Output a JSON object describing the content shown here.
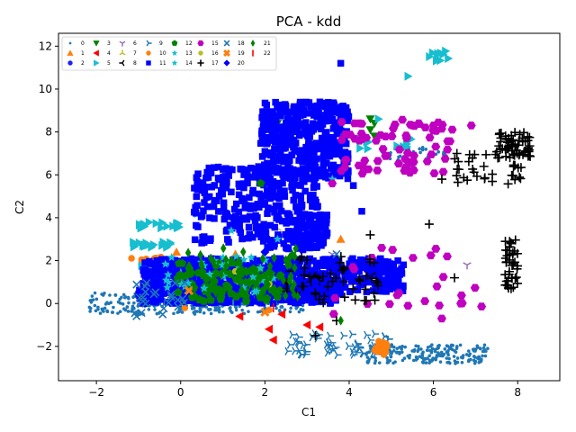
{
  "chart_data": {
    "type": "scatter",
    "title": "PCA - kdd",
    "xlabel": "C1",
    "ylabel": "C2",
    "xlim": [
      -2.9,
      9.0
    ],
    "ylim": [
      -3.6,
      12.6
    ],
    "xticks": [
      -2,
      0,
      2,
      4,
      6,
      8
    ],
    "yticks": [
      -2,
      0,
      2,
      4,
      6,
      8,
      10,
      12
    ],
    "legend_position": "top-left",
    "legend_columns": 8,
    "series": [
      {
        "name": "0",
        "marker": "o-small",
        "color": "#1f77b4",
        "clusters": [
          {
            "x": [
              -2.2,
              1.6
            ],
            "y": [
              -0.5,
              0.5
            ],
            "n": 220
          },
          {
            "x": [
              0.5,
              3.0
            ],
            "y": [
              -0.4,
              0.4
            ],
            "n": 80
          },
          {
            "x": [
              4.4,
              7.3
            ],
            "y": [
              -2.8,
              -1.9
            ],
            "n": 200
          },
          {
            "x": [
              4.8,
              6.4
            ],
            "y": [
              6.7,
              7.3
            ],
            "n": 40
          }
        ]
      },
      {
        "name": "1",
        "marker": "^",
        "color": "#ff7f0e",
        "points": [
          [
            3.8,
            3.0
          ],
          [
            -0.1,
            2.4
          ],
          [
            1.3,
            2.3
          ]
        ]
      },
      {
        "name": "2",
        "marker": "o",
        "color": "#1f1fff",
        "points": [
          [
            0.0,
            0.3
          ],
          [
            0.8,
            0.2
          ],
          [
            2.0,
            0.4
          ]
        ]
      },
      {
        "name": "3",
        "marker": "v",
        "color": "#008000",
        "points": [
          [
            2.3,
            8.4
          ],
          [
            4.5,
            8.6
          ],
          [
            4.6,
            8.4
          ],
          [
            4.5,
            8.1
          ],
          [
            4.6,
            7.8
          ]
        ]
      },
      {
        "name": "4",
        "marker": "<",
        "color": "#ff0000",
        "points": [
          [
            1.4,
            -0.6
          ],
          [
            2.1,
            -1.2
          ],
          [
            2.2,
            -1.7
          ],
          [
            3.0,
            -1.0
          ],
          [
            3.3,
            -1.1
          ],
          [
            2.4,
            -0.5
          ]
        ]
      },
      {
        "name": "5",
        "marker": ">",
        "color": "#17becf",
        "clusters": [
          {
            "x": [
              -1.3,
              -0.2
            ],
            "y": [
              2.6,
              2.9
            ],
            "n": 20
          },
          {
            "x": [
              -1.0,
              0.0
            ],
            "y": [
              3.5,
              3.8
            ],
            "n": 20
          },
          {
            "x": [
              -1.0,
              0.0
            ],
            "y": [
              1.3,
              1.8
            ],
            "n": 20
          },
          {
            "x": [
              5.8,
              6.4
            ],
            "y": [
              11.3,
              11.8
            ],
            "n": 10
          },
          {
            "x": [
              4.2,
              5.6
            ],
            "y": [
              7.2,
              7.8
            ],
            "n": 15
          }
        ],
        "points": [
          [
            5.4,
            10.6
          ],
          [
            0.4,
            4.2
          ],
          [
            4.7,
            8.6
          ]
        ]
      },
      {
        "name": "6",
        "marker": "tri_down",
        "color": "#9467bd",
        "points": [
          [
            3.6,
            2.3
          ],
          [
            6.8,
            1.8
          ],
          [
            2.8,
            0.4
          ]
        ]
      },
      {
        "name": "7",
        "marker": "tri_up",
        "color": "#bcbd22",
        "points": [
          [
            2.3,
            3.5
          ],
          [
            1.8,
            1.4
          ]
        ]
      },
      {
        "name": "8",
        "marker": "tri_left",
        "color": "#000000",
        "points": [
          [
            3.5,
            1.9
          ],
          [
            3.3,
            1.6
          ]
        ]
      },
      {
        "name": "9",
        "marker": "tri_right",
        "color": "#1f77b4",
        "clusters": [
          {
            "x": [
              2.5,
              5.0
            ],
            "y": [
              -2.4,
              -1.4
            ],
            "n": 60
          }
        ]
      },
      {
        "name": "10",
        "marker": "o",
        "color": "#ff7f0e",
        "clusters": [
          {
            "x": [
              -1.3,
              -0.3
            ],
            "y": [
              1.9,
              2.2
            ],
            "n": 12
          },
          {
            "x": [
              4.6,
              4.9
            ],
            "y": [
              -2.4,
              -1.7
            ],
            "n": 20
          }
        ],
        "points": [
          [
            0.1,
            -0.2
          ],
          [
            2.1,
            -0.3
          ]
        ]
      },
      {
        "name": "11",
        "marker": "s",
        "color": "#0000ff",
        "clusters": [
          {
            "x": [
              1.9,
              4.0
            ],
            "y": [
              5.8,
              9.4
            ],
            "n": 420
          },
          {
            "x": [
              0.3,
              3.3
            ],
            "y": [
              2.6,
              6.4
            ],
            "n": 300
          },
          {
            "x": [
              -0.9,
              5.3
            ],
            "y": [
              0.5,
              2.1
            ],
            "n": 650
          },
          {
            "x": [
              -1.0,
              3.8
            ],
            "y": [
              0.0,
              0.9
            ],
            "n": 300
          },
          {
            "x": [
              2.5,
              3.5
            ],
            "y": [
              2.5,
              4.2
            ],
            "n": 80
          }
        ],
        "points": [
          [
            3.8,
            11.2
          ],
          [
            2.2,
            7.6
          ],
          [
            1.5,
            5.4
          ],
          [
            1.2,
            5.2
          ],
          [
            0.8,
            4.8
          ],
          [
            3.0,
            3.2
          ],
          [
            4.3,
            4.3
          ],
          [
            3.9,
            6.4
          ],
          [
            4.1,
            5.5
          ],
          [
            5.0,
            1.5
          ]
        ]
      },
      {
        "name": "12",
        "marker": "p",
        "color": "#008000",
        "clusters": [
          {
            "x": [
              -0.1,
              2.4
            ],
            "y": [
              0.1,
              1.9
            ],
            "n": 90
          }
        ],
        "points": [
          [
            1.9,
            5.6
          ]
        ]
      },
      {
        "name": "13",
        "marker": "*",
        "color": "#17becf",
        "clusters": [
          {
            "x": [
              -0.4,
              2.4
            ],
            "y": [
              0.5,
              2.2
            ],
            "n": 30
          }
        ],
        "points": [
          [
            3.6,
            5.8
          ]
        ]
      },
      {
        "name": "14",
        "marker": "*",
        "color": "#17becf",
        "points": [
          [
            1.2,
            3.4
          ],
          [
            2.3,
            3.0
          ],
          [
            0.8,
            2.0
          ]
        ]
      },
      {
        "name": "15",
        "marker": "h",
        "color": "#c000c0",
        "clusters": [
          {
            "x": [
              3.8,
              6.5
            ],
            "y": [
              6.0,
              8.6
            ],
            "n": 70
          },
          {
            "x": [
              3.5,
              7.2
            ],
            "y": [
              -0.5,
              2.6
            ],
            "n": 25
          }
        ],
        "points": [
          [
            6.9,
            8.3
          ],
          [
            6.0,
            8.3
          ],
          [
            5.5,
            8.3
          ],
          [
            3.6,
            5.6
          ],
          [
            6.2,
            -0.7
          ]
        ]
      },
      {
        "name": "16",
        "marker": "o",
        "color": "#bcbd22",
        "points": [
          [
            1.3,
            1.5
          ],
          [
            2.1,
            0.9
          ]
        ]
      },
      {
        "name": "17",
        "marker": "+",
        "color": "#000000",
        "clusters": [
          {
            "x": [
              7.5,
              8.3
            ],
            "y": [
              6.8,
              8.0
            ],
            "n": 60
          },
          {
            "x": [
              6.5,
              7.8
            ],
            "y": [
              5.5,
              7.0
            ],
            "n": 25
          },
          {
            "x": [
              7.7,
              8.0
            ],
            "y": [
              0.6,
              3.0
            ],
            "n": 40
          },
          {
            "x": [
              2.5,
              4.8
            ],
            "y": [
              0.0,
              2.2
            ],
            "n": 55
          },
          {
            "x": [
              7.8,
              8.1
            ],
            "y": [
              5.5,
              6.5
            ],
            "n": 10
          }
        ],
        "points": [
          [
            4.5,
            3.2
          ],
          [
            6.5,
            1.2
          ],
          [
            5.9,
            3.7
          ],
          [
            6.2,
            5.8
          ],
          [
            3.7,
            -0.8
          ],
          [
            3.2,
            -1.5
          ]
        ]
      },
      {
        "name": "18",
        "marker": "x",
        "color": "#1f77b4",
        "clusters": [
          {
            "x": [
              -1.2,
              0.2
            ],
            "y": [
              -0.6,
              1.0
            ],
            "n": 25
          }
        ],
        "points": [
          [
            3.7,
            2.3
          ]
        ]
      },
      {
        "name": "19",
        "marker": "X",
        "color": "#ff7f0e",
        "points": [
          [
            2.0,
            -0.4
          ],
          [
            0.2,
            0.6
          ]
        ]
      },
      {
        "name": "20",
        "marker": "D",
        "color": "#0000ff",
        "points": [
          [
            3.2,
            1.0
          ],
          [
            2.0,
            2.4
          ],
          [
            4.5,
            1.5
          ]
        ]
      },
      {
        "name": "21",
        "marker": "d",
        "color": "#008000",
        "clusters": [
          {
            "x": [
              0.1,
              2.8
            ],
            "y": [
              0.2,
              2.6
            ],
            "n": 60
          }
        ],
        "points": [
          [
            3.8,
            -0.8
          ],
          [
            1.4,
            1.9
          ]
        ]
      },
      {
        "name": "22",
        "marker": "|",
        "color": "#ff0000",
        "points": [
          [
            2.2,
            -0.2
          ]
        ]
      }
    ]
  }
}
